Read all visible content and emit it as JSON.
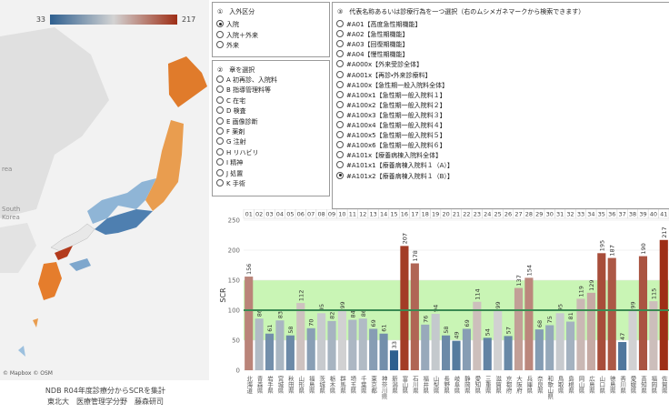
{
  "map": {
    "legend_min": 33,
    "legend_max": 217,
    "attribution": "© Mapbox © OSM",
    "labels": [
      "rea",
      "South",
      "Korea"
    ]
  },
  "caption": [
    "NDB R04年度診療分からSCRを集計",
    "東北大　医療管理学分野　藤森研司"
  ],
  "panel1": {
    "title": "①　入外区分",
    "selected": 0,
    "options": [
      "入院",
      "入院＋外来",
      "外来"
    ]
  },
  "panel2": {
    "title": "②　章を選択",
    "options": [
      "A 初再診、入院料",
      "B 指導管理料等",
      "C 在宅",
      "D 検査",
      "E 画像診断",
      "F 薬剤",
      "G 注射",
      "H リハビリ",
      "I 精神",
      "J 処置",
      "K 手術"
    ]
  },
  "panel3": {
    "title": "③　代表名称あるいは診療行為を一つ選択（右のムシメガネマークから検索できます）",
    "selected": 15,
    "options": [
      "#A01【高度急性期機能】",
      "#A02【急性期機能】",
      "#A03【回復期機能】",
      "#A04【慢性期機能】",
      "#A000x【外来受診全体】",
      "#A001x【再診・外来診療料】",
      "#A100x【急性期一般入院料全体】",
      "#A100x1【急性期一般入院料１】",
      "#A100x2【急性期一般入院料２】",
      "#A100x3【急性期一般入院料３】",
      "#A100x4【急性期一般入院料４】",
      "#A100x5【急性期一般入院料５】",
      "#A100x6【急性期一般入院料６】",
      "#A101x【療養病棟入院料全体】",
      "#A101x1【療養病棟入院料１（A）】",
      "#A101x2【療養病棟入院料１（B）】"
    ]
  },
  "chart_data": {
    "type": "bar",
    "y_label": "SCR",
    "codes": [
      "01",
      "02",
      "03",
      "04",
      "05",
      "06",
      "07",
      "08",
      "09",
      "10",
      "11",
      "12",
      "13",
      "14",
      "15",
      "16",
      "17",
      "18",
      "19",
      "20",
      "21",
      "22",
      "23",
      "24",
      "25",
      "26",
      "27",
      "28",
      "29",
      "30",
      "31",
      "32",
      "33",
      "34",
      "35",
      "36",
      "37",
      "38",
      "39",
      "40",
      "41"
    ],
    "categories": [
      "北海道",
      "青森県",
      "岩手県",
      "宮城県",
      "秋田県",
      "山形県",
      "福島県",
      "茨城県",
      "栃木県",
      "群馬県",
      "埼玉県",
      "千葉県",
      "東京都",
      "神奈川県",
      "新潟県",
      "富山県",
      "石川県",
      "福井県",
      "山梨県",
      "長野県",
      "岐阜県",
      "静岡県",
      "愛知県",
      "三重県",
      "滋賀県",
      "京都府",
      "大阪府",
      "兵庫県",
      "奈良県",
      "和歌山県",
      "鳥取県",
      "島根県",
      "岡山県",
      "広島県",
      "山口県",
      "徳島県",
      "香川県",
      "愛媛県",
      "高知県",
      "福岡県",
      "佐賀県"
    ],
    "values": [
      156,
      86,
      61,
      83,
      58,
      112,
      70,
      95,
      82,
      99,
      84,
      86,
      69,
      61,
      33,
      207,
      178,
      76,
      94,
      58,
      49,
      69,
      114,
      54,
      99,
      57,
      137,
      154,
      68,
      75,
      95,
      81,
      119,
      129,
      195,
      187,
      47,
      99,
      190,
      115,
      217
    ],
    "ylim": [
      0,
      250
    ],
    "yticks": [
      0,
      50,
      100,
      150,
      200,
      250
    ],
    "reference_line": 100,
    "band": [
      50,
      150
    ],
    "band_color": "#c9f5b5",
    "line_color": "#3a8a52",
    "colors": {
      "low": "#2e5f8f",
      "mid": "#d3d3d3",
      "high": "#9e2e16"
    }
  }
}
